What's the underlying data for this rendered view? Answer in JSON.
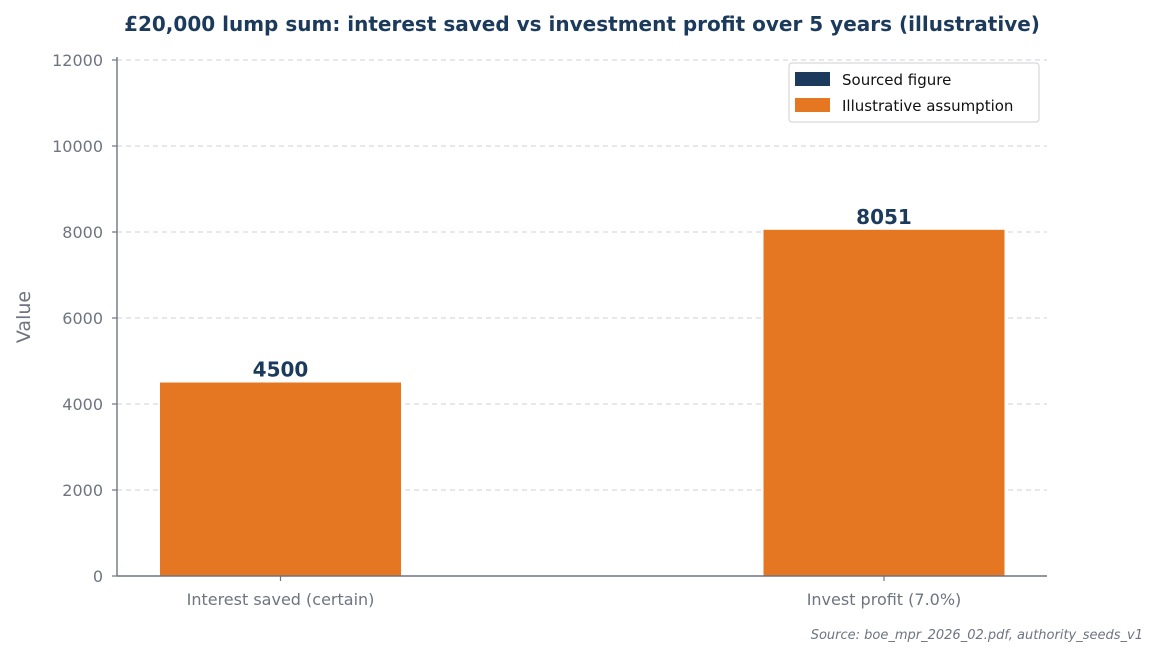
{
  "chart_data": {
    "type": "bar",
    "title": "£20,000 lump sum: interest saved vs investment profit over 5 years (illustrative)",
    "xlabel": "",
    "ylabel": "Value",
    "categories": [
      "Interest saved (certain)",
      "Invest profit (7.0%)"
    ],
    "values": [
      4500,
      8051
    ],
    "data_labels": [
      "4500",
      "8051"
    ],
    "bar_kinds": [
      "illustrative",
      "illustrative"
    ],
    "ylim": [
      0,
      12000
    ],
    "yticks": [
      0,
      2000,
      4000,
      6000,
      8000,
      10000,
      12000
    ],
    "ytick_labels": [
      "0",
      "2000",
      "4000",
      "6000",
      "8000",
      "10000",
      "12000"
    ],
    "grid": "horizontal-dashed",
    "legend": {
      "placement": "top-right",
      "entries": [
        {
          "key": "sourced",
          "label": "Sourced figure",
          "color": "#1b3a5c"
        },
        {
          "key": "illustrative",
          "label": "Illustrative assumption",
          "color": "#e67722"
        }
      ]
    },
    "source_note": "Source: boe_mpr_2026_02.pdf, authority_seeds_v1"
  },
  "colors": {
    "title": "#1b3a5c",
    "data_label": "#1b3a5c",
    "axis_text": "#6e7480",
    "axis_line": "#6e7480",
    "grid": "#d8dbe0",
    "legend_border": "#cfcfcf"
  }
}
